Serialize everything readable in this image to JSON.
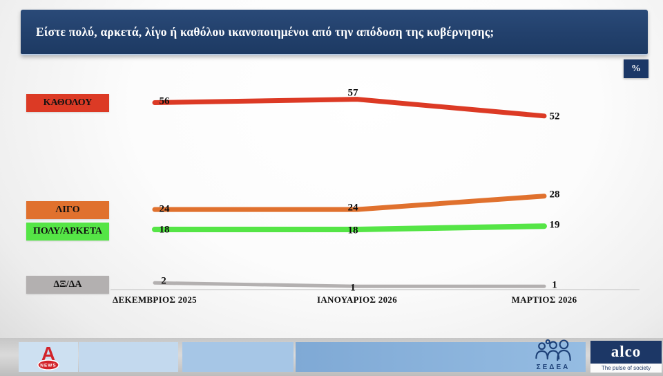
{
  "header": {
    "title": "Είστε πολύ, αρκετά, λίγο ή καθόλου ικανοποιημένοι από την απόδοση της κυβέρνησης;",
    "unit_badge": "%"
  },
  "chart_data": {
    "type": "line",
    "title": "",
    "categories": [
      "ΔΕΚΕΜΒΡΙΟΣ 2025",
      "ΙΑΝΟΥΑΡΙΟΣ 2026",
      "ΜΑΡΤΙΟΣ 2026"
    ],
    "series": [
      {
        "name": "ΚΑΘΟΛΟΥ",
        "values": [
          56,
          57,
          52
        ],
        "color": "#dc3a25"
      },
      {
        "name": "ΛΙΓΟ",
        "values": [
          24,
          24,
          28
        ],
        "color": "#e0712e"
      },
      {
        "name": "ΠΟΛΥ/ΑΡΚΕΤΑ",
        "values": [
          18,
          18,
          19
        ],
        "color": "#55e546"
      },
      {
        "name": "ΔΞ/ΔΑ",
        "values": [
          2,
          1,
          1
        ],
        "color": "#b3b0b0"
      }
    ],
    "ylim": [
      0,
      65
    ],
    "grid": false,
    "legend_position": "left",
    "unit": "%",
    "axis_color": "#d9d9d9"
  },
  "footer": {
    "alpha_letter": "A",
    "alpha_news": "NEWS",
    "sedea": "ΣΕΔΕΑ",
    "alco": "alco",
    "alco_tagline": "The pulse of society"
  }
}
